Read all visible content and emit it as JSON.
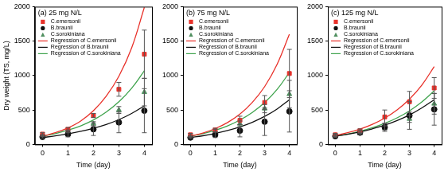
{
  "chart_data": [
    {
      "type": "scatter",
      "title": "(a) 25 mg N/L",
      "x_label": "Time (day)",
      "y_label": "Dry weight (TS, mg/L)",
      "x": [
        0,
        1,
        2,
        3,
        4
      ],
      "xlim": [
        -0.3,
        4.3
      ],
      "xticks": [
        0,
        1,
        2,
        3,
        4
      ],
      "ylim": [
        0,
        2000
      ],
      "yticks": [
        0,
        500,
        1000,
        1500,
        2000
      ],
      "grid": false,
      "legend": "upper left",
      "series": [
        {
          "name": "C.emersonii",
          "type": "scatter",
          "marker": "square",
          "color": "#e8312a",
          "values": [
            150,
            220,
            420,
            800,
            1310
          ],
          "error": [
            20,
            25,
            30,
            100,
            350
          ]
        },
        {
          "name": "B.braunii",
          "type": "scatter",
          "marker": "circle",
          "color": "#111111",
          "values": [
            110,
            150,
            220,
            320,
            490
          ],
          "error": [
            15,
            40,
            90,
            150,
            320
          ]
        },
        {
          "name": "C.sorokiniana",
          "type": "scatter",
          "marker": "triangle",
          "color": "#4f8f5f",
          "values": [
            130,
            190,
            300,
            500,
            760
          ],
          "error": [
            15,
            20,
            30,
            50,
            200
          ]
        },
        {
          "name": "Regression of C.emersonii",
          "type": "line",
          "line_style": "solid",
          "color": "#e8312a",
          "x": [
            0,
            0.5,
            1,
            1.5,
            2,
            2.5,
            3,
            3.5,
            4
          ],
          "values": [
            120,
            170,
            240,
            340,
            490,
            700,
            990,
            1400,
            1990
          ]
        },
        {
          "name": "Regression of B.braunii",
          "type": "line",
          "line_style": "solid",
          "color": "#111111",
          "x": [
            0,
            0.5,
            1,
            1.5,
            2,
            2.5,
            3,
            3.5,
            4
          ],
          "values": [
            100,
            124,
            154,
            190,
            235,
            290,
            360,
            450,
            560
          ]
        },
        {
          "name": "Regression of C.sorokiniana",
          "type": "line",
          "line_style": "solid",
          "color": "#3fa34d",
          "x": [
            0,
            0.5,
            1,
            1.5,
            2,
            2.5,
            3,
            3.5,
            4
          ],
          "values": [
            120,
            157,
            207,
            270,
            355,
            470,
            620,
            815,
            1070
          ]
        }
      ]
    },
    {
      "type": "scatter",
      "title": "(b) 75 mg N/L",
      "x_label": "Time (day)",
      "x": [
        0,
        1,
        2,
        3,
        4
      ],
      "xlim": [
        -0.3,
        4.3
      ],
      "xticks": [
        0,
        1,
        2,
        3,
        4
      ],
      "ylim": [
        0,
        2000
      ],
      "yticks": [
        0,
        500,
        1000,
        1500,
        2000
      ],
      "grid": false,
      "legend": "upper left",
      "series": [
        {
          "name": "C.emersonii",
          "type": "scatter",
          "marker": "square",
          "color": "#e8312a",
          "values": [
            140,
            210,
            350,
            610,
            1030
          ],
          "error": [
            20,
            25,
            60,
            100,
            350
          ]
        },
        {
          "name": "B.braunii",
          "type": "scatter",
          "marker": "circle",
          "color": "#111111",
          "values": [
            100,
            140,
            200,
            330,
            480
          ],
          "error": [
            15,
            40,
            90,
            200,
            300
          ]
        },
        {
          "name": "C.sorokiniana",
          "type": "scatter",
          "marker": "triangle",
          "color": "#4f8f5f",
          "values": [
            120,
            200,
            300,
            520,
            730
          ],
          "error": [
            15,
            20,
            40,
            60,
            200
          ]
        },
        {
          "name": "Regression of C.emersonii",
          "type": "line",
          "line_style": "solid",
          "color": "#e8312a",
          "x": [
            0,
            0.5,
            1,
            1.5,
            2,
            2.5,
            3,
            3.5,
            4
          ],
          "values": [
            120,
            166,
            230,
            318,
            440,
            610,
            840,
            1160,
            1600
          ]
        },
        {
          "name": "Regression of B.braunii",
          "type": "line",
          "line_style": "solid",
          "color": "#111111",
          "x": [
            0,
            0.5,
            1,
            1.5,
            2,
            2.5,
            3,
            3.5,
            4
          ],
          "values": [
            100,
            126,
            160,
            202,
            255,
            322,
            407,
            514,
            650
          ]
        },
        {
          "name": "Regression of C.sorokiniana",
          "type": "line",
          "line_style": "solid",
          "color": "#3fa34d",
          "x": [
            0,
            0.5,
            1,
            1.5,
            2,
            2.5,
            3,
            3.5,
            4
          ],
          "values": [
            120,
            157,
            206,
            270,
            354,
            464,
            608,
            797,
            1045
          ]
        }
      ]
    },
    {
      "type": "scatter",
      "title": "(c) 125 mg N/L",
      "x_label": "Time (day)",
      "x": [
        0,
        1,
        2,
        3,
        4
      ],
      "xlim": [
        -0.3,
        4.3
      ],
      "xticks": [
        0,
        1,
        2,
        3,
        4
      ],
      "ylim": [
        0,
        2000
      ],
      "yticks": [
        0,
        500,
        1000,
        1500,
        2000
      ],
      "grid": false,
      "legend": "upper left",
      "series": [
        {
          "name": "C.emersonii",
          "type": "scatter",
          "marker": "square",
          "color": "#e8312a",
          "values": [
            140,
            200,
            400,
            620,
            820
          ],
          "error": [
            20,
            25,
            100,
            150,
            150
          ]
        },
        {
          "name": "B.braunii",
          "type": "scatter",
          "marker": "circle",
          "color": "#111111",
          "values": [
            120,
            170,
            250,
            420,
            510
          ],
          "error": [
            15,
            30,
            60,
            200,
            230
          ]
        },
        {
          "name": "C.sorokiniana",
          "type": "scatter",
          "marker": "triangle",
          "color": "#4f8f5f",
          "values": [
            130,
            180,
            240,
            370,
            590
          ],
          "error": [
            15,
            20,
            30,
            50,
            150
          ]
        },
        {
          "name": "Regression of C.emersonii",
          "type": "line",
          "line_style": "solid",
          "color": "#e8312a",
          "x": [
            0,
            0.5,
            1,
            1.5,
            2,
            2.5,
            3,
            3.5,
            4
          ],
          "values": [
            130,
            170,
            223,
            292,
            383,
            502,
            658,
            862,
            1130
          ]
        },
        {
          "name": "Regression of B.braunii",
          "type": "line",
          "line_style": "solid",
          "color": "#111111",
          "x": [
            0,
            0.5,
            1,
            1.5,
            2,
            2.5,
            3,
            3.5,
            4
          ],
          "values": [
            120,
            148,
            183,
            227,
            280,
            347,
            428,
            530,
            650
          ]
        },
        {
          "name": "Regression of C.sorokiniana",
          "type": "line",
          "line_style": "solid",
          "color": "#3fa34d",
          "x": [
            0,
            0.5,
            1,
            1.5,
            2,
            2.5,
            3,
            3.5,
            4
          ],
          "values": [
            120,
            151,
            191,
            242,
            306,
            386,
            488,
            617,
            780
          ]
        }
      ]
    }
  ]
}
